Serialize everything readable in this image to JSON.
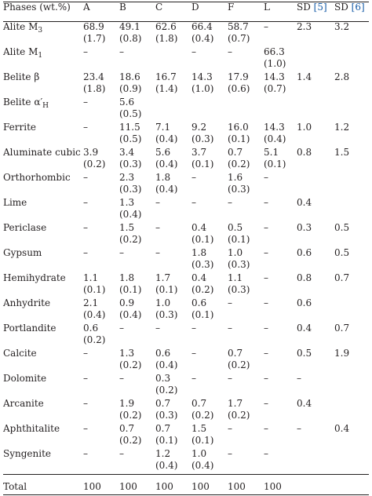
{
  "table": {
    "headers": {
      "phase": "Phases (wt.%)",
      "A": "A",
      "B": "B",
      "C": "C",
      "D": "D",
      "F": "F",
      "L": "L",
      "sd5_label": "SD",
      "sd5_ref": "[5]",
      "sd6_label": "SD",
      "sd6_ref": "[6]"
    },
    "rows": [
      {
        "phase": "Alite M",
        "phase_sub": "3",
        "A": [
          "68.9",
          "(1.7)"
        ],
        "B": [
          "49.1",
          "(0.8)"
        ],
        "C": [
          "62.6",
          "(1.8)"
        ],
        "D": [
          "66.4",
          "(0.4)"
        ],
        "F": [
          "58.7",
          "(0.7)"
        ],
        "L": [
          "–",
          ""
        ],
        "sd5": "2.3",
        "sd6": "3.2"
      },
      {
        "phase": "Alite M",
        "phase_sub": "1",
        "A": [
          "–",
          ""
        ],
        "B": [
          "–",
          ""
        ],
        "C": [
          "",
          ""
        ],
        "D": [
          "–",
          ""
        ],
        "F": [
          "–",
          ""
        ],
        "L": [
          "66.3",
          "(1.0)"
        ],
        "sd5": "",
        "sd6": ""
      },
      {
        "phase": "Belite β",
        "phase_sub": "",
        "A": [
          "23.4",
          "(1.8)"
        ],
        "B": [
          "18.6",
          "(0.9)"
        ],
        "C": [
          "16.7",
          "(1.4)"
        ],
        "D": [
          "14.3",
          "(1.0)"
        ],
        "F": [
          "17.9",
          "(0.6)"
        ],
        "L": [
          "14.3",
          "(0.7)"
        ],
        "sd5": "1.4",
        "sd6": "2.8"
      },
      {
        "phase": "Belite α′",
        "phase_sub": "H",
        "A": [
          "–",
          ""
        ],
        "B": [
          "5.6",
          "(0.5)"
        ],
        "C": [
          "",
          ""
        ],
        "D": [
          "",
          ""
        ],
        "F": [
          "",
          ""
        ],
        "L": [
          "",
          ""
        ],
        "sd5": "",
        "sd6": ""
      },
      {
        "phase": "Ferrite",
        "phase_sub": "",
        "A": [
          "–",
          ""
        ],
        "B": [
          "11.5",
          "(0.5)"
        ],
        "C": [
          "7.1",
          "(0.4)"
        ],
        "D": [
          "9.2",
          "(0.3)"
        ],
        "F": [
          "16.0",
          "(0.1)"
        ],
        "L": [
          "14.3",
          "(0.4)"
        ],
        "sd5": "1.0",
        "sd6": "1.2"
      },
      {
        "phase": "Aluminate cubic",
        "phase_sub": "",
        "A": [
          "3.9",
          "(0.2)"
        ],
        "B": [
          "3.4",
          "(0.3)"
        ],
        "C": [
          "5.6",
          "(0.4)"
        ],
        "D": [
          "3.7",
          "(0.1)"
        ],
        "F": [
          "0.7",
          "(0.2)"
        ],
        "L": [
          "5.1",
          "(0.1)"
        ],
        "sd5": "0.8",
        "sd6": "1.5"
      },
      {
        "phase": "Orthorhombic",
        "phase_sub": "",
        "A": [
          "–",
          ""
        ],
        "B": [
          "2.3",
          "(0.3)"
        ],
        "C": [
          "1.8",
          "(0.4)"
        ],
        "D": [
          "–",
          ""
        ],
        "F": [
          "1.6",
          "(0.3)"
        ],
        "L": [
          "–",
          ""
        ],
        "sd5": "",
        "sd6": ""
      },
      {
        "phase": "Lime",
        "phase_sub": "",
        "A": [
          "–",
          ""
        ],
        "B": [
          "1.3",
          "(0.4)"
        ],
        "C": [
          "–",
          ""
        ],
        "D": [
          "–",
          ""
        ],
        "F": [
          "–",
          ""
        ],
        "L": [
          "–",
          ""
        ],
        "sd5": "0.4",
        "sd6": ""
      },
      {
        "phase": "Periclase",
        "phase_sub": "",
        "A": [
          "–",
          ""
        ],
        "B": [
          "1.5",
          "(0.2)"
        ],
        "C": [
          "–",
          ""
        ],
        "D": [
          "0.4",
          "(0.1)"
        ],
        "F": [
          "0.5",
          "(0.1)"
        ],
        "L": [
          "–",
          ""
        ],
        "sd5": "0.3",
        "sd6": "0.5"
      },
      {
        "phase": "Gypsum",
        "phase_sub": "",
        "A": [
          "–",
          ""
        ],
        "B": [
          "–",
          ""
        ],
        "C": [
          "–",
          ""
        ],
        "D": [
          "1.8",
          "(0.3)"
        ],
        "F": [
          "1.0",
          "(0.3)"
        ],
        "L": [
          "–",
          ""
        ],
        "sd5": "0.6",
        "sd6": "0.5"
      },
      {
        "phase": "Hemihydrate",
        "phase_sub": "",
        "A": [
          "1.1",
          "(0.1)"
        ],
        "B": [
          "1.8",
          "(0.1)"
        ],
        "C": [
          "1.7",
          "(0.1)"
        ],
        "D": [
          "0.4",
          "(0.2)"
        ],
        "F": [
          "1.1",
          "(0.3)"
        ],
        "L": [
          "–",
          ""
        ],
        "sd5": "0.8",
        "sd6": "0.7"
      },
      {
        "phase": "Anhydrite",
        "phase_sub": "",
        "A": [
          "2.1",
          "(0.4)"
        ],
        "B": [
          "0.9",
          "(0.4)"
        ],
        "C": [
          "1.0",
          "(0.3)"
        ],
        "D": [
          "0.6",
          "(0.1)"
        ],
        "F": [
          "–",
          ""
        ],
        "L": [
          "–",
          ""
        ],
        "sd5": "0.6",
        "sd6": ""
      },
      {
        "phase": "Portlandite",
        "phase_sub": "",
        "A": [
          "0.6",
          "(0.2)"
        ],
        "B": [
          "–",
          ""
        ],
        "C": [
          "–",
          ""
        ],
        "D": [
          "–",
          ""
        ],
        "F": [
          "–",
          ""
        ],
        "L": [
          "–",
          ""
        ],
        "sd5": "0.4",
        "sd6": "0.7"
      },
      {
        "phase": "Calcite",
        "phase_sub": "",
        "A": [
          "–",
          ""
        ],
        "B": [
          "1.3",
          "(0.2)"
        ],
        "C": [
          "0.6",
          "(0.4)"
        ],
        "D": [
          "–",
          ""
        ],
        "F": [
          "0.7",
          "(0.2)"
        ],
        "L": [
          "–",
          ""
        ],
        "sd5": "0.5",
        "sd6": "1.9"
      },
      {
        "phase": "Dolomite",
        "phase_sub": "",
        "A": [
          "–",
          ""
        ],
        "B": [
          "–",
          ""
        ],
        "C": [
          "0.3",
          "(0.2)"
        ],
        "D": [
          "–",
          ""
        ],
        "F": [
          "–",
          ""
        ],
        "L": [
          "–",
          ""
        ],
        "sd5": "–",
        "sd6": ""
      },
      {
        "phase": "Arcanite",
        "phase_sub": "",
        "A": [
          "–",
          ""
        ],
        "B": [
          "1.9",
          "(0.2)"
        ],
        "C": [
          "0.7",
          "(0.3)"
        ],
        "D": [
          "0.7",
          "(0.2)"
        ],
        "F": [
          "1.7",
          "(0.2)"
        ],
        "L": [
          "–",
          ""
        ],
        "sd5": "0.4",
        "sd6": ""
      },
      {
        "phase": "Aphthitalite",
        "phase_sub": "",
        "A": [
          "–",
          ""
        ],
        "B": [
          "0.7",
          "(0.2)"
        ],
        "C": [
          "0.7",
          "(0.1)"
        ],
        "D": [
          "1.5",
          "(0.1)"
        ],
        "F": [
          "–",
          ""
        ],
        "L": [
          "–",
          ""
        ],
        "sd5": "–",
        "sd6": "0.4"
      },
      {
        "phase": "Syngenite",
        "phase_sub": "",
        "A": [
          "–",
          ""
        ],
        "B": [
          "–",
          ""
        ],
        "C": [
          "1.2",
          "(0.4)"
        ],
        "D": [
          "1.0",
          "(0.4)"
        ],
        "F": [
          "–",
          ""
        ],
        "L": [
          "–",
          ""
        ],
        "sd5": "",
        "sd6": ""
      }
    ],
    "total": {
      "label": "Total",
      "A": "100",
      "B": "100",
      "C": "100",
      "D": "100",
      "F": "100",
      "L": "100",
      "sd5": "",
      "sd6": ""
    }
  }
}
